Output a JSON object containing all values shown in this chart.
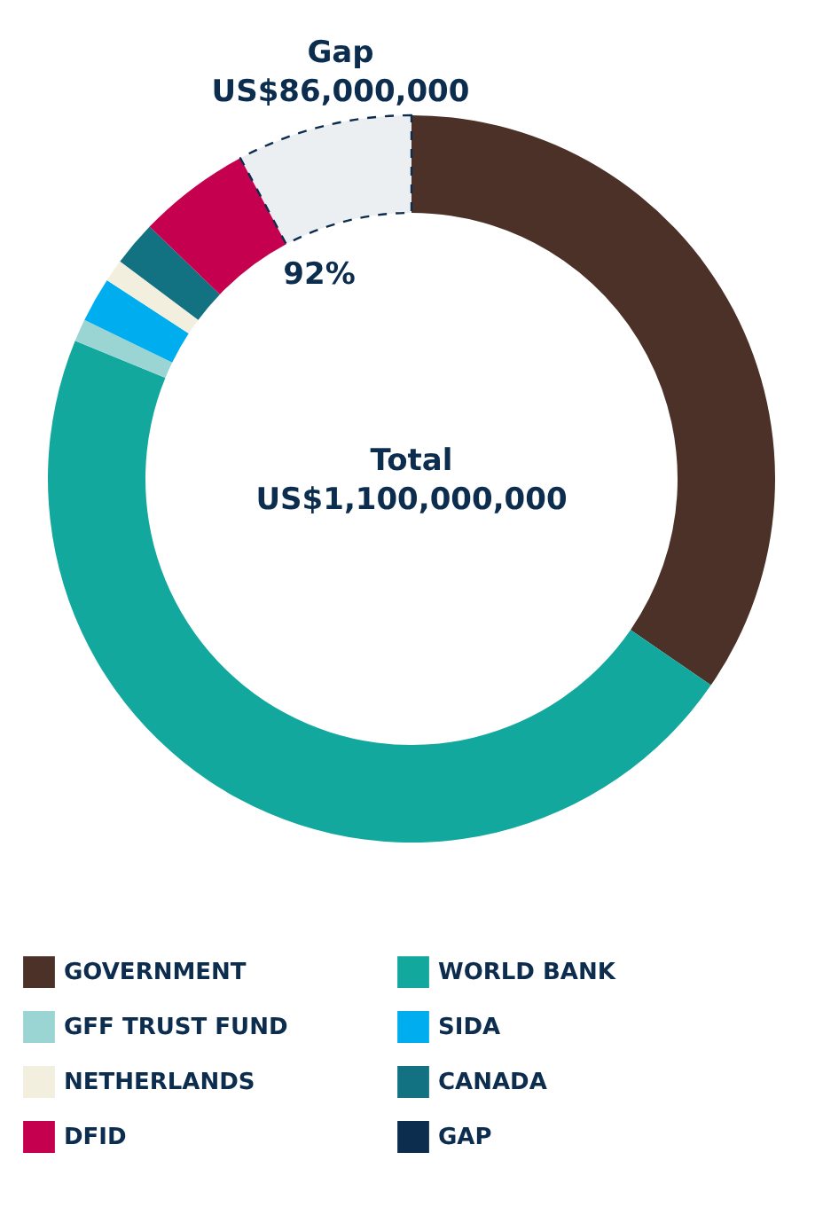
{
  "chart_data": {
    "type": "donut",
    "categories": [
      "GOVERNMENT",
      "WORLD BANK",
      "GFF TRUST FUND",
      "SIDA",
      "NETHERLANDS",
      "CANADA",
      "DFID",
      "GAP"
    ],
    "values": [
      34.6,
      46.6,
      1,
      2,
      1,
      2,
      5,
      7.8
    ],
    "colors": [
      "#4b3128",
      "#13a89e",
      "#9bd5d3",
      "#00aeef",
      "#f2efdf",
      "#137282",
      "#c4004f",
      "#0d2d4f"
    ],
    "line_style": "dashed",
    "legend": "bottom",
    "annotations": [
      "Gap\nUS$86,000,000",
      "92%",
      "Total\nUS$1,100,000,000"
    ]
  }
}
